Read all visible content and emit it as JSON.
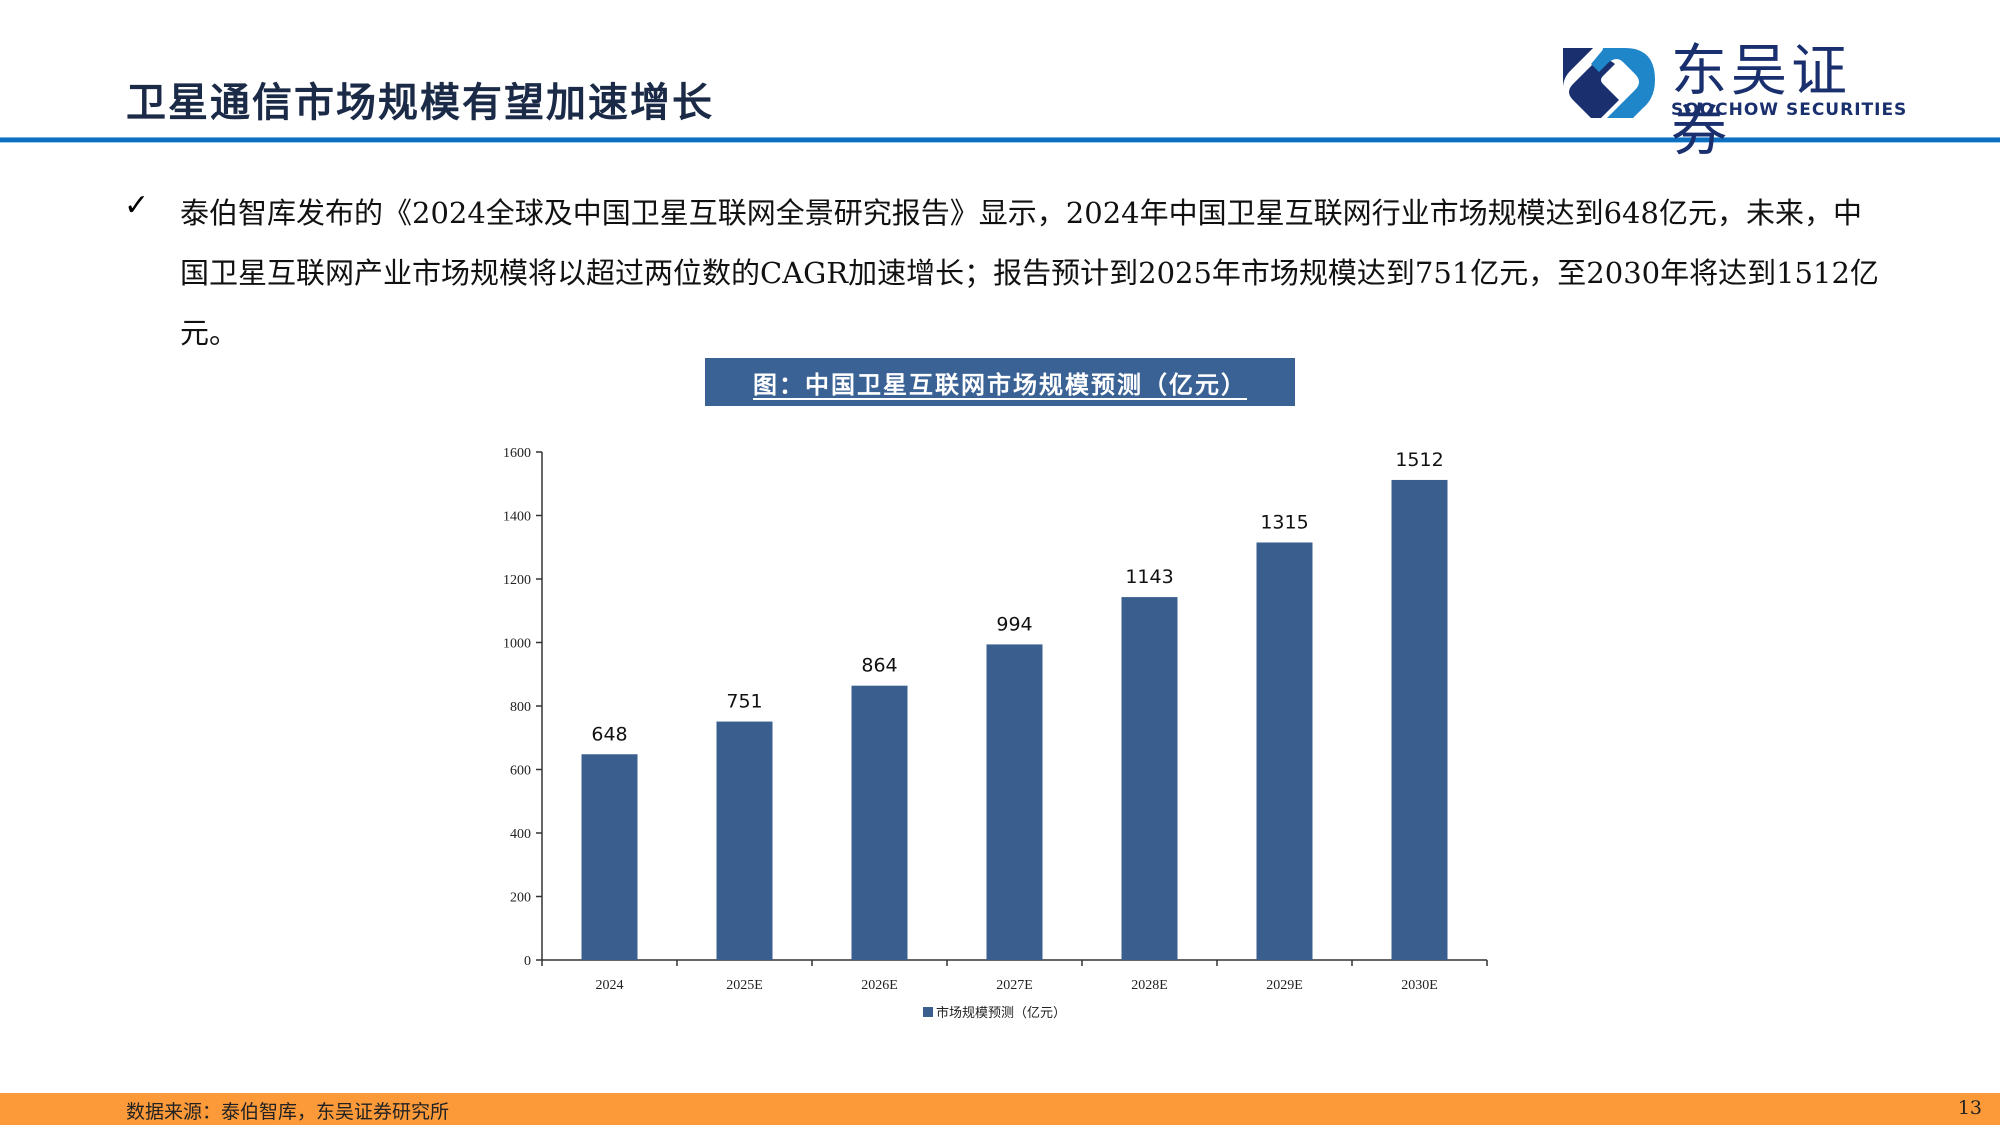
{
  "header": {
    "title": "卫星通信市场规模有望加速增长",
    "logo_cn": "东吴证券",
    "logo_en": "SOOCHOW SECURITIES"
  },
  "body": {
    "bullet_icon": "✓",
    "paragraph": "泰伯智库发布的《2024全球及中国卫星互联网全景研究报告》显示，2024年中国卫星互联网行业市场规模达到648亿元，未来，中国卫星互联网产业市场规模将以超过两位数的CAGR加速增长；报告预计到2025年市场规模达到751亿元，至2030年将达到1512亿元。"
  },
  "figure": {
    "title": "图：中国卫星互联网市场规模预测（亿元）"
  },
  "chart_data": {
    "type": "bar",
    "title": "图：中国卫星互联网市场规模预测（亿元）",
    "categories": [
      "2024",
      "2025E",
      "2026E",
      "2027E",
      "2028E",
      "2029E",
      "2030E"
    ],
    "series": [
      {
        "name": "市场规模预测（亿元）",
        "values": [
          648,
          751,
          864,
          994,
          1143,
          1315,
          1512
        ],
        "color": "#3a5f8f"
      }
    ],
    "xlabel": "",
    "ylabel": "",
    "ylim": [
      0,
      1600
    ],
    "yticks": [
      0,
      200,
      400,
      600,
      800,
      1000,
      1200,
      1400,
      1600
    ],
    "grid": false,
    "data_labels": true,
    "legend_position": "bottom"
  },
  "footer": {
    "source": "数据来源：泰伯智库，东吴证券研究所",
    "page_number": "13"
  },
  "colors": {
    "title": "#1b2a47",
    "rule": "#0d6fc0",
    "bar": "#3a5f8f",
    "figure_title_bg": "#3a6295",
    "footer_bg": "#fc9a3a",
    "logo_dark": "#1a2f6e",
    "logo_light": "#1f86c9"
  }
}
